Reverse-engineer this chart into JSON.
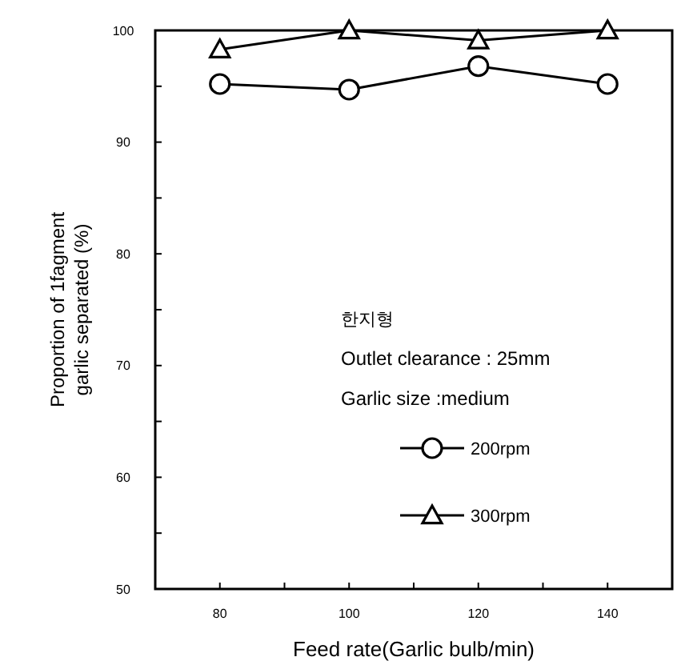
{
  "chart_data": {
    "type": "line",
    "xlabel": "Feed rate(Garlic bulb/min)",
    "ylabel": "Proportion of 1fagment\ngarlic separated (%)",
    "x": [
      80,
      100,
      120,
      140
    ],
    "series": [
      {
        "name": "200rpm",
        "color": "#000000",
        "marker": "circle",
        "values": [
          95.2,
          94.7,
          96.8,
          95.2
        ]
      },
      {
        "name": "300rpm",
        "color": "#000000",
        "marker": "triangle",
        "values": [
          98.3,
          100,
          99.1,
          100
        ]
      }
    ],
    "xlim": [
      70,
      150
    ],
    "xticks": [
      80,
      {
        "value": 90,
        "label": null
      },
      100,
      {
        "value": 110,
        "label": null
      },
      120,
      {
        "value": 130,
        "label": null
      },
      140
    ],
    "ylim": [
      50,
      100
    ],
    "yticks": [
      50,
      {
        "value": 55,
        "label": null
      },
      60,
      {
        "value": 65,
        "label": null
      },
      70,
      {
        "value": 75,
        "label": null
      },
      80,
      {
        "value": 85,
        "label": null
      },
      90,
      {
        "value": 95,
        "label": null
      },
      100
    ],
    "grid": false,
    "legend": "center",
    "line_style": "solid",
    "annotations": [
      "한지형",
      "Outlet clearance : 25mm",
      "Garlic size :medium"
    ]
  }
}
